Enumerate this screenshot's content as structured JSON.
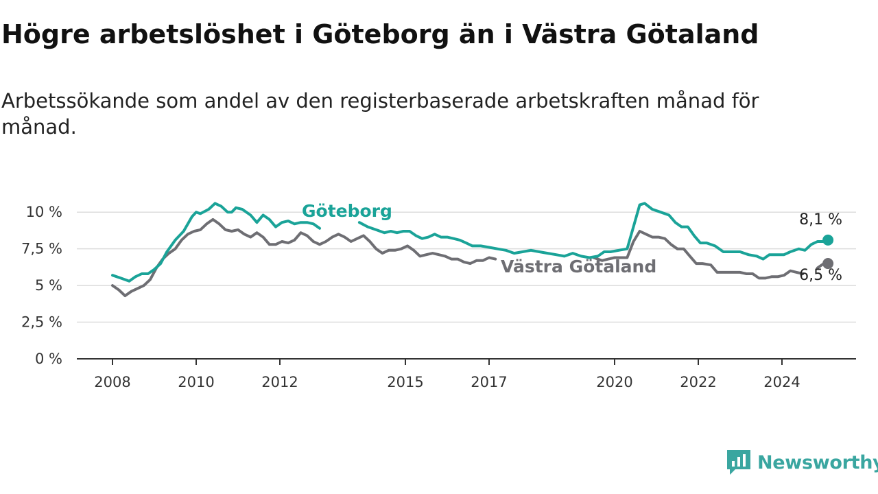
{
  "title": "Högre arbetslöshet i Göteborg än i Västra Götaland",
  "subtitle": "Arbetssökande som andel av den registerbaserade arbetskraften månad för månad.",
  "brand": {
    "name": "Newsworthy",
    "icon": "newsworthy-logo-icon"
  },
  "colors": {
    "goteborg": "#1aa398",
    "vastra": "#6e6e73",
    "grid": "#dcdcdc",
    "axis": "#333333"
  },
  "chart_data": {
    "type": "line",
    "xlim": [
      2008,
      2025.8
    ],
    "ylim": [
      0,
      10.9
    ],
    "x_ticks": [
      {
        "value": 2008,
        "label": "2008"
      },
      {
        "value": 2010,
        "label": "2010"
      },
      {
        "value": 2012,
        "label": "2012"
      },
      {
        "value": 2015,
        "label": "2015"
      },
      {
        "value": 2017,
        "label": "2017"
      },
      {
        "value": 2020,
        "label": "2020"
      },
      {
        "value": 2022,
        "label": "2022"
      },
      {
        "value": 2024,
        "label": "2024"
      }
    ],
    "y_ticks": [
      {
        "value": 0,
        "label": "0 %"
      },
      {
        "value": 2.5,
        "label": "2,5 %"
      },
      {
        "value": 5,
        "label": "5 %"
      },
      {
        "value": 7.5,
        "label": "7,5 %"
      },
      {
        "value": 10,
        "label": "10 %"
      }
    ],
    "grid": true,
    "legend": "inline",
    "series": [
      {
        "key": "goteborg",
        "name": "Göteborg",
        "end_label": "8,1 %",
        "points": [
          [
            2008.0,
            5.7
          ],
          [
            2008.2,
            5.5
          ],
          [
            2008.4,
            5.3
          ],
          [
            2008.55,
            5.6
          ],
          [
            2008.7,
            5.8
          ],
          [
            2008.85,
            5.8
          ],
          [
            2009.0,
            6.1
          ],
          [
            2009.15,
            6.5
          ],
          [
            2009.3,
            7.3
          ],
          [
            2009.5,
            8.1
          ],
          [
            2009.7,
            8.7
          ],
          [
            2009.9,
            9.7
          ],
          [
            2010.0,
            10.0
          ],
          [
            2010.1,
            9.9
          ],
          [
            2010.3,
            10.2
          ],
          [
            2010.45,
            10.6
          ],
          [
            2010.6,
            10.4
          ],
          [
            2010.75,
            10.0
          ],
          [
            2010.85,
            10.0
          ],
          [
            2010.95,
            10.3
          ],
          [
            2011.1,
            10.2
          ],
          [
            2011.3,
            9.8
          ],
          [
            2011.45,
            9.3
          ],
          [
            2011.6,
            9.8
          ],
          [
            2011.75,
            9.5
          ],
          [
            2011.9,
            9.0
          ],
          [
            2012.05,
            9.3
          ],
          [
            2012.2,
            9.4
          ],
          [
            2012.35,
            9.2
          ],
          [
            2012.5,
            9.3
          ],
          [
            2012.65,
            9.3
          ],
          [
            2012.8,
            9.2
          ],
          [
            2012.95,
            8.9
          ],
          [
            2013.1,
            9.2
          ],
          [
            2013.3,
            9.4
          ],
          [
            2013.5,
            9.5
          ],
          [
            2013.7,
            9.6
          ],
          [
            2013.9,
            9.3
          ],
          [
            2014.1,
            9.0
          ],
          [
            2014.3,
            8.8
          ],
          [
            2014.5,
            8.6
          ],
          [
            2014.65,
            8.7
          ],
          [
            2014.8,
            8.6
          ],
          [
            2014.95,
            8.7
          ],
          [
            2015.1,
            8.7
          ],
          [
            2015.25,
            8.4
          ],
          [
            2015.4,
            8.2
          ],
          [
            2015.55,
            8.3
          ],
          [
            2015.7,
            8.5
          ],
          [
            2015.85,
            8.3
          ],
          [
            2016.0,
            8.3
          ],
          [
            2016.15,
            8.2
          ],
          [
            2016.3,
            8.1
          ],
          [
            2016.45,
            7.9
          ],
          [
            2016.6,
            7.7
          ],
          [
            2016.8,
            7.7
          ],
          [
            2017.0,
            7.6
          ],
          [
            2017.2,
            7.5
          ],
          [
            2017.4,
            7.4
          ],
          [
            2017.6,
            7.2
          ],
          [
            2017.8,
            7.3
          ],
          [
            2018.0,
            7.4
          ],
          [
            2018.2,
            7.3
          ],
          [
            2018.4,
            7.2
          ],
          [
            2018.6,
            7.1
          ],
          [
            2018.8,
            7.0
          ],
          [
            2019.0,
            7.2
          ],
          [
            2019.2,
            7.0
          ],
          [
            2019.4,
            6.9
          ],
          [
            2019.6,
            7.0
          ],
          [
            2019.75,
            7.3
          ],
          [
            2019.9,
            7.3
          ],
          [
            2020.1,
            7.4
          ],
          [
            2020.3,
            7.5
          ],
          [
            2020.45,
            9.0
          ],
          [
            2020.6,
            10.5
          ],
          [
            2020.72,
            10.6
          ],
          [
            2020.9,
            10.2
          ],
          [
            2021.1,
            10.0
          ],
          [
            2021.3,
            9.8
          ],
          [
            2021.45,
            9.3
          ],
          [
            2021.6,
            9.0
          ],
          [
            2021.75,
            9.0
          ],
          [
            2021.9,
            8.4
          ],
          [
            2022.05,
            7.9
          ],
          [
            2022.2,
            7.9
          ],
          [
            2022.4,
            7.7
          ],
          [
            2022.6,
            7.3
          ],
          [
            2022.8,
            7.3
          ],
          [
            2023.0,
            7.3
          ],
          [
            2023.2,
            7.1
          ],
          [
            2023.4,
            7.0
          ],
          [
            2023.55,
            6.8
          ],
          [
            2023.7,
            7.1
          ],
          [
            2023.9,
            7.1
          ],
          [
            2024.05,
            7.1
          ],
          [
            2024.2,
            7.3
          ],
          [
            2024.4,
            7.5
          ],
          [
            2024.55,
            7.4
          ],
          [
            2024.7,
            7.8
          ],
          [
            2024.85,
            8.0
          ],
          [
            2025.0,
            8.0
          ],
          [
            2025.1,
            8.1
          ]
        ]
      },
      {
        "key": "vastra",
        "name": "Västra Götaland",
        "end_label": "6,5 %",
        "points": [
          [
            2008.0,
            5.0
          ],
          [
            2008.15,
            4.7
          ],
          [
            2008.3,
            4.3
          ],
          [
            2008.45,
            4.6
          ],
          [
            2008.6,
            4.8
          ],
          [
            2008.75,
            5.0
          ],
          [
            2008.9,
            5.4
          ],
          [
            2009.05,
            6.2
          ],
          [
            2009.2,
            6.8
          ],
          [
            2009.35,
            7.2
          ],
          [
            2009.5,
            7.5
          ],
          [
            2009.65,
            8.1
          ],
          [
            2009.8,
            8.5
          ],
          [
            2009.95,
            8.7
          ],
          [
            2010.1,
            8.8
          ],
          [
            2010.25,
            9.2
          ],
          [
            2010.4,
            9.5
          ],
          [
            2010.55,
            9.2
          ],
          [
            2010.7,
            8.8
          ],
          [
            2010.85,
            8.7
          ],
          [
            2011.0,
            8.8
          ],
          [
            2011.15,
            8.5
          ],
          [
            2011.3,
            8.3
          ],
          [
            2011.45,
            8.6
          ],
          [
            2011.6,
            8.3
          ],
          [
            2011.75,
            7.8
          ],
          [
            2011.9,
            7.8
          ],
          [
            2012.05,
            8.0
          ],
          [
            2012.2,
            7.9
          ],
          [
            2012.35,
            8.1
          ],
          [
            2012.5,
            8.6
          ],
          [
            2012.65,
            8.4
          ],
          [
            2012.8,
            8.0
          ],
          [
            2012.95,
            7.8
          ],
          [
            2013.1,
            8.0
          ],
          [
            2013.25,
            8.3
          ],
          [
            2013.4,
            8.5
          ],
          [
            2013.55,
            8.3
          ],
          [
            2013.7,
            8.0
          ],
          [
            2013.85,
            8.2
          ],
          [
            2014.0,
            8.4
          ],
          [
            2014.15,
            8.0
          ],
          [
            2014.3,
            7.5
          ],
          [
            2014.45,
            7.2
          ],
          [
            2014.6,
            7.4
          ],
          [
            2014.75,
            7.4
          ],
          [
            2014.9,
            7.5
          ],
          [
            2015.05,
            7.7
          ],
          [
            2015.2,
            7.4
          ],
          [
            2015.35,
            7.0
          ],
          [
            2015.5,
            7.1
          ],
          [
            2015.65,
            7.2
          ],
          [
            2015.8,
            7.1
          ],
          [
            2015.95,
            7.0
          ],
          [
            2016.1,
            6.8
          ],
          [
            2016.25,
            6.8
          ],
          [
            2016.4,
            6.6
          ],
          [
            2016.55,
            6.5
          ],
          [
            2016.7,
            6.7
          ],
          [
            2016.85,
            6.7
          ],
          [
            2017.0,
            6.9
          ],
          [
            2017.15,
            6.8
          ]
        ],
        "points_tail_1": [
          [
            2019.5,
            6.9
          ],
          [
            2019.7,
            6.7
          ],
          [
            2019.85,
            6.8
          ],
          [
            2020.0,
            6.9
          ],
          [
            2020.15,
            6.9
          ],
          [
            2020.3,
            6.9
          ],
          [
            2020.45,
            8.0
          ],
          [
            2020.6,
            8.7
          ],
          [
            2020.75,
            8.5
          ],
          [
            2020.9,
            8.3
          ],
          [
            2021.05,
            8.3
          ],
          [
            2021.2,
            8.2
          ],
          [
            2021.35,
            7.8
          ],
          [
            2021.5,
            7.5
          ],
          [
            2021.65,
            7.5
          ],
          [
            2021.8,
            7.0
          ],
          [
            2021.95,
            6.5
          ],
          [
            2022.1,
            6.5
          ],
          [
            2022.3,
            6.4
          ],
          [
            2022.45,
            5.9
          ],
          [
            2022.6,
            5.9
          ],
          [
            2022.8,
            5.9
          ],
          [
            2023.0,
            5.9
          ],
          [
            2023.15,
            5.8
          ],
          [
            2023.3,
            5.8
          ],
          [
            2023.45,
            5.5
          ],
          [
            2023.6,
            5.5
          ],
          [
            2023.75,
            5.6
          ],
          [
            2023.9,
            5.6
          ],
          [
            2024.05,
            5.7
          ],
          [
            2024.2,
            6.0
          ],
          [
            2024.35,
            5.9
          ],
          [
            2024.5,
            5.8
          ]
        ],
        "points_tail_2": [
          [
            2024.85,
            6.2
          ],
          [
            2025.0,
            6.5
          ],
          [
            2025.1,
            6.5
          ]
        ]
      }
    ]
  }
}
